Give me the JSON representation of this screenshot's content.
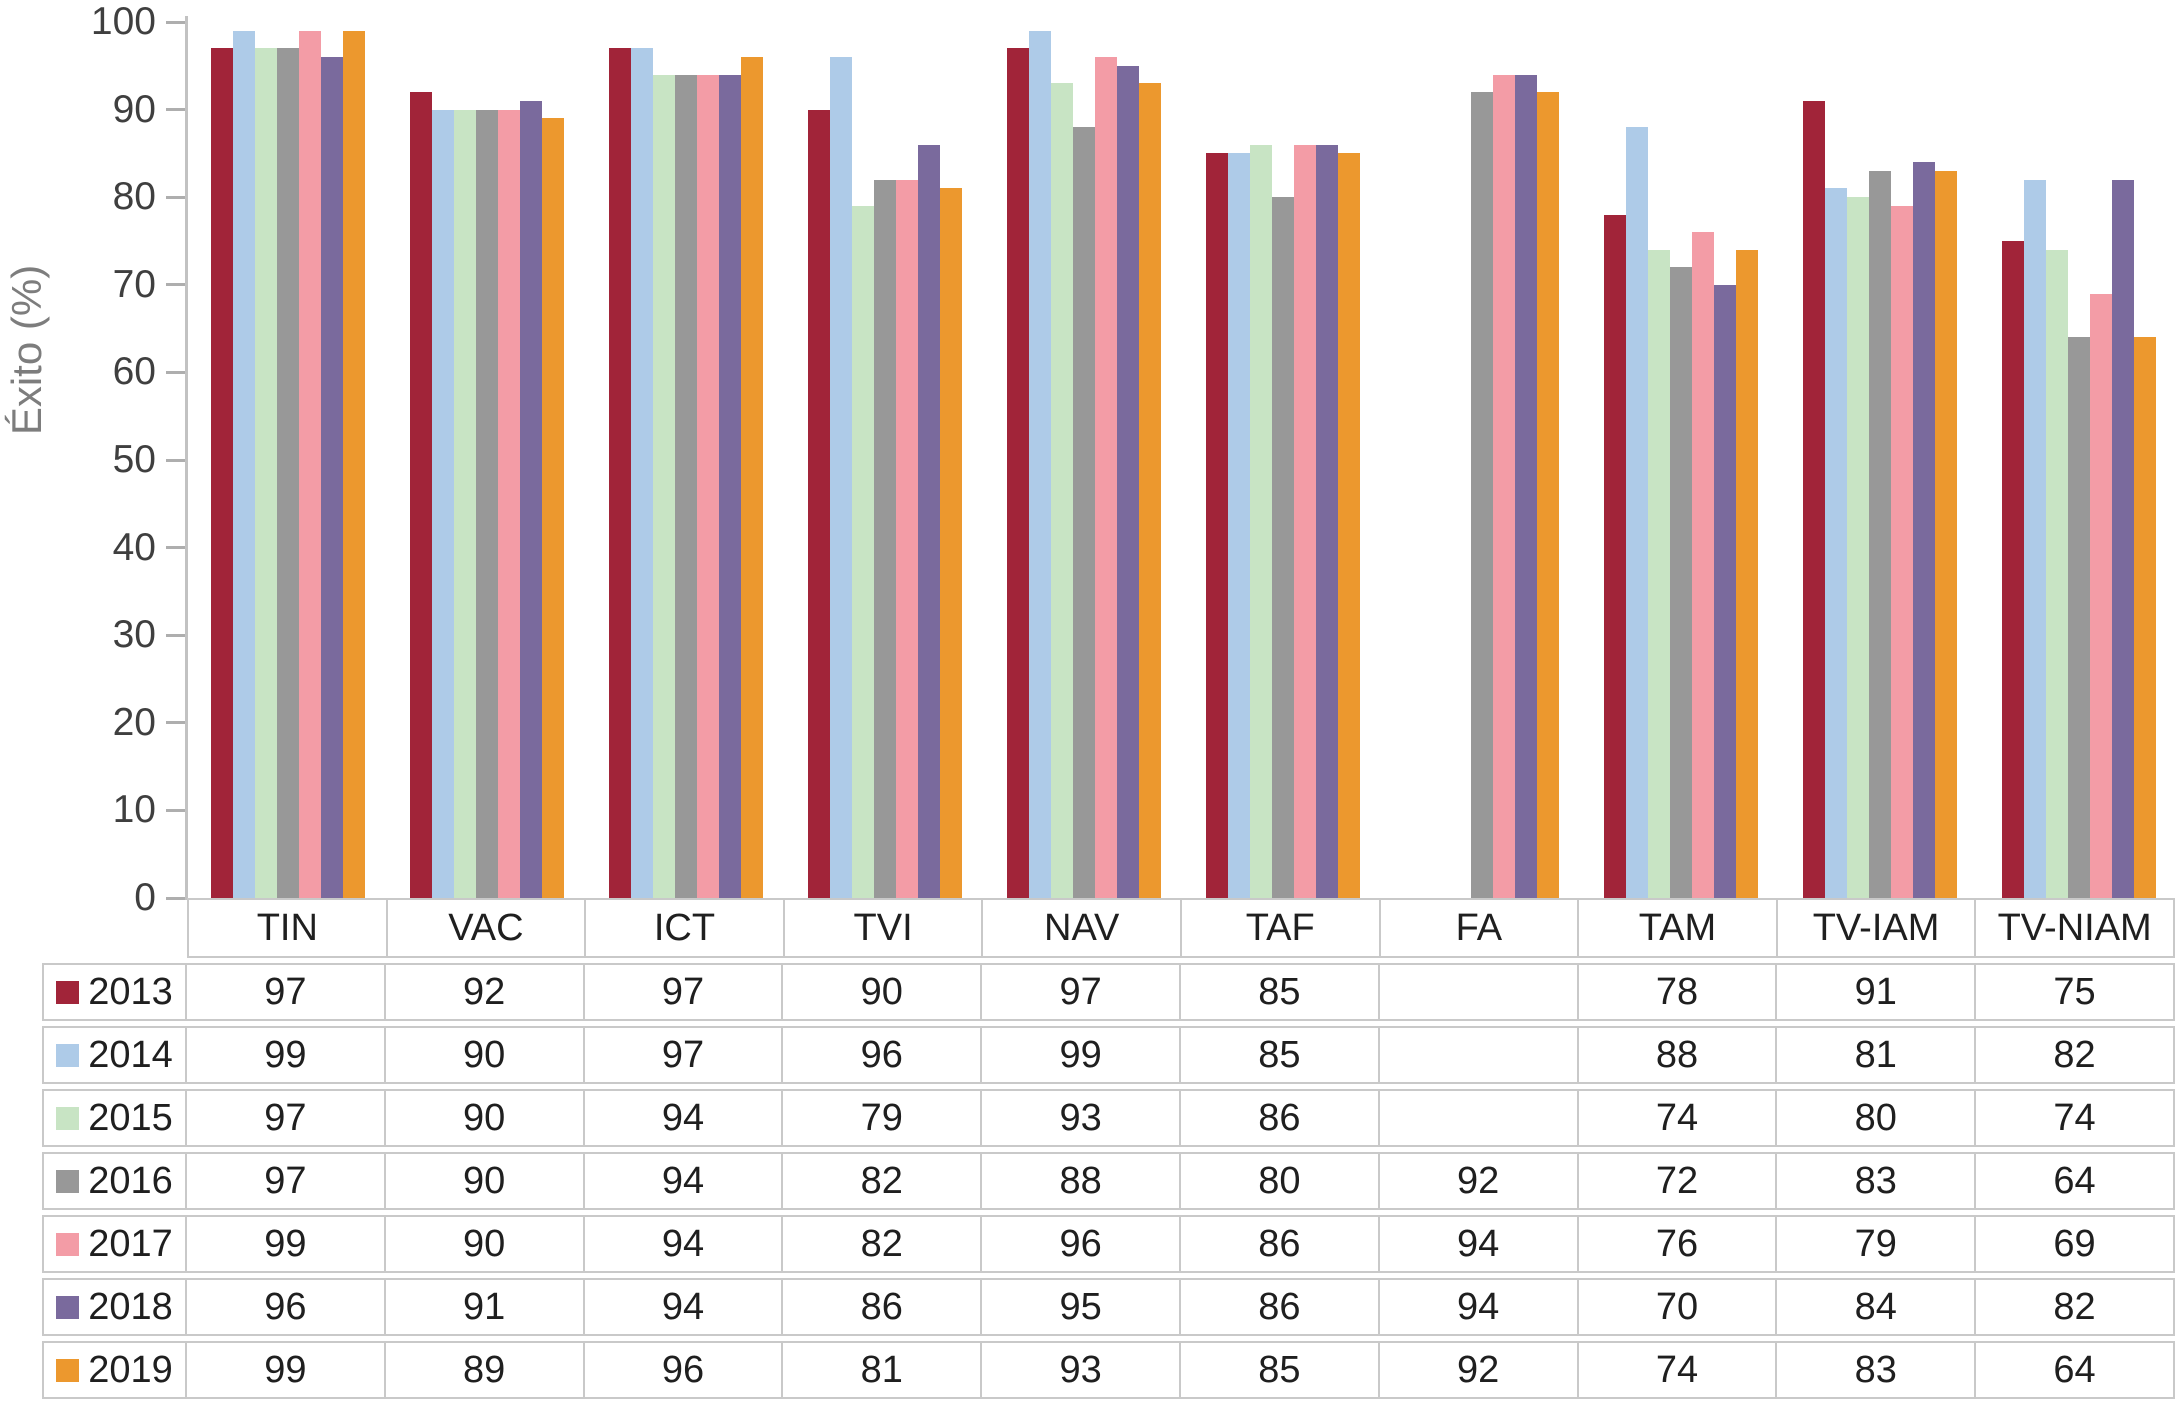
{
  "chart_data": {
    "type": "bar",
    "title": "",
    "xlabel": "",
    "ylabel": "Éxito (%)",
    "ylim": [
      0,
      100
    ],
    "ytick_step": 10,
    "grid": false,
    "legend_position": "data-table-left-column",
    "data_table_shown": true,
    "categories": [
      "TIN",
      "VAC",
      "ICT",
      "TVI",
      "NAV",
      "TAF",
      "FA",
      "TAM",
      "TV-IAM",
      "TV-NIAM"
    ],
    "series": [
      {
        "name": "2013",
        "color": "#a12439",
        "values": [
          97,
          92,
          97,
          90,
          97,
          85,
          null,
          78,
          91,
          75
        ]
      },
      {
        "name": "2014",
        "color": "#aecbe8",
        "values": [
          99,
          90,
          97,
          96,
          99,
          85,
          null,
          88,
          81,
          82
        ]
      },
      {
        "name": "2015",
        "color": "#c8e4c4",
        "values": [
          97,
          90,
          94,
          79,
          93,
          86,
          null,
          74,
          80,
          74
        ]
      },
      {
        "name": "2016",
        "color": "#989898",
        "values": [
          97,
          90,
          94,
          82,
          88,
          80,
          92,
          72,
          83,
          64
        ]
      },
      {
        "name": "2017",
        "color": "#f39ca6",
        "values": [
          99,
          90,
          94,
          82,
          96,
          86,
          94,
          76,
          79,
          69
        ]
      },
      {
        "name": "2018",
        "color": "#7a6a9d",
        "values": [
          96,
          91,
          94,
          86,
          95,
          86,
          94,
          70,
          84,
          82
        ]
      },
      {
        "name": "2019",
        "color": "#ec982e",
        "values": [
          99,
          89,
          96,
          81,
          93,
          85,
          92,
          74,
          83,
          64
        ]
      }
    ]
  },
  "style_colors": {
    "axis_line": "#c2c2c2",
    "tick_mark": "#aeaeae",
    "tick_label_text": "#3f3f3f",
    "y_axis_title_text": "#7d7d7d",
    "table_border": "#c9c9c9",
    "table_text": "#1f1f1f",
    "background": "#ffffff"
  }
}
